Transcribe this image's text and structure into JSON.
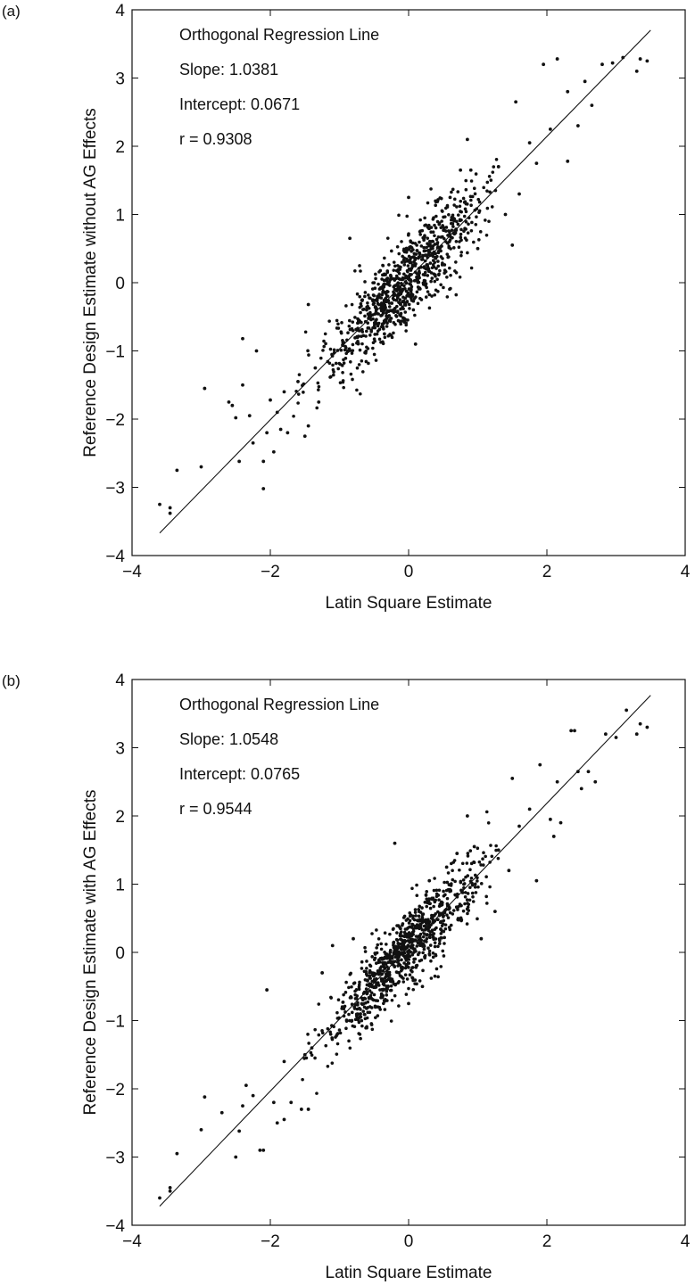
{
  "chart_data": [
    {
      "type": "scatter",
      "panel_label": "(a)",
      "xlabel": "Latin Square Estimate",
      "ylabel": "Reference Design Estimate without AG Effects",
      "xlim": [
        -4,
        4
      ],
      "ylim": [
        -4,
        4
      ],
      "xticks": [
        "−4",
        "−2",
        "0",
        "2",
        "4"
      ],
      "yticks": [
        "4",
        "3",
        "2",
        "1",
        "0",
        "−1",
        "−2",
        "−3",
        "−4"
      ],
      "grid": false,
      "annotations": [
        "Orthogonal Regression Line",
        "Slope: 1.0381",
        "Intercept: 0.0671",
        "r = 0.9308"
      ],
      "regression": {
        "slope": 1.0381,
        "intercept": 0.0671,
        "x_range": [
          -3.6,
          3.5
        ]
      },
      "correlation": 0.9308,
      "points": [
        [
          -3.6,
          -3.25
        ],
        [
          -3.45,
          -3.3
        ],
        [
          -3.45,
          -3.38
        ],
        [
          -3.35,
          -2.75
        ],
        [
          -3.0,
          -2.7
        ],
        [
          -2.95,
          -1.55
        ],
        [
          -2.6,
          -1.75
        ],
        [
          -2.55,
          -1.8
        ],
        [
          -2.5,
          -1.98
        ],
        [
          -2.45,
          -2.62
        ],
        [
          -2.4,
          -0.82
        ],
        [
          -2.4,
          -1.5
        ],
        [
          -2.3,
          -1.95
        ],
        [
          -2.25,
          -2.35
        ],
        [
          -2.2,
          -1.0
        ],
        [
          -2.1,
          -3.02
        ],
        [
          -2.1,
          -2.62
        ],
        [
          -2.05,
          -2.2
        ],
        [
          -2.0,
          -1.72
        ],
        [
          -1.95,
          -2.48
        ],
        [
          -1.9,
          -1.9
        ],
        [
          -1.85,
          -2.15
        ],
        [
          -1.8,
          -1.6
        ],
        [
          -1.75,
          -2.2
        ],
        [
          -1.6,
          -1.45
        ],
        [
          -1.5,
          -2.25
        ],
        [
          -1.45,
          -0.32
        ],
        [
          -1.45,
          -2.1
        ],
        [
          -1.35,
          -1.25
        ],
        [
          -1.3,
          -1.75
        ],
        [
          3.45,
          3.25
        ],
        [
          3.35,
          3.28
        ],
        [
          3.3,
          3.1
        ],
        [
          3.1,
          3.3
        ],
        [
          2.95,
          3.22
        ],
        [
          2.8,
          3.2
        ],
        [
          2.65,
          2.6
        ],
        [
          2.55,
          2.95
        ],
        [
          2.45,
          2.3
        ],
        [
          2.3,
          1.78
        ],
        [
          2.3,
          2.8
        ],
        [
          2.15,
          3.28
        ],
        [
          2.05,
          2.25
        ],
        [
          1.95,
          3.2
        ],
        [
          1.85,
          1.75
        ],
        [
          1.75,
          2.05
        ],
        [
          1.6,
          1.3
        ],
        [
          1.55,
          2.65
        ],
        [
          1.5,
          0.55
        ],
        [
          1.4,
          1.0
        ],
        [
          1.3,
          1.7
        ],
        [
          0.85,
          2.1
        ],
        [
          0.9,
          1.65
        ],
        [
          0.75,
          1.65
        ],
        [
          1.0,
          0.5
        ],
        [
          0.6,
          1.25
        ],
        [
          -0.85,
          0.65
        ],
        [
          0.0,
          1.25
        ],
        [
          0.1,
          -0.9
        ],
        [
          -0.35,
          -0.75
        ]
      ]
    },
    {
      "type": "scatter",
      "panel_label": "(b)",
      "xlabel": "Latin Square Estimate",
      "ylabel": "Reference Design Estimate with AG Effects",
      "xlim": [
        -4,
        4
      ],
      "ylim": [
        -4,
        4
      ],
      "xticks": [
        "−4",
        "−2",
        "0",
        "2",
        "4"
      ],
      "yticks": [
        "4",
        "3",
        "2",
        "1",
        "0",
        "−1",
        "−2",
        "−3",
        "−4"
      ],
      "grid": false,
      "annotations": [
        "Orthogonal Regression Line",
        "Slope: 1.0548",
        "Intercept: 0.0765",
        "r = 0.9544"
      ],
      "regression": {
        "slope": 1.0548,
        "intercept": 0.0765,
        "x_range": [
          -3.6,
          3.5
        ]
      },
      "correlation": 0.9544,
      "points": [
        [
          -3.6,
          -3.6
        ],
        [
          -3.45,
          -3.45
        ],
        [
          -3.45,
          -3.5
        ],
        [
          -3.35,
          -2.95
        ],
        [
          -3.0,
          -2.6
        ],
        [
          -2.95,
          -2.12
        ],
        [
          -2.7,
          -2.35
        ],
        [
          -2.5,
          -3.0
        ],
        [
          -2.45,
          -2.62
        ],
        [
          -2.4,
          -2.25
        ],
        [
          -2.35,
          -1.95
        ],
        [
          -2.25,
          -2.1
        ],
        [
          -2.15,
          -2.9
        ],
        [
          -2.1,
          -2.9
        ],
        [
          -2.05,
          -0.55
        ],
        [
          -1.95,
          -2.2
        ],
        [
          -1.9,
          -2.5
        ],
        [
          -1.8,
          -1.6
        ],
        [
          -1.8,
          -2.45
        ],
        [
          -1.7,
          -2.2
        ],
        [
          -1.55,
          -2.3
        ],
        [
          -1.5,
          -1.5
        ],
        [
          -1.45,
          -2.3
        ],
        [
          -1.4,
          -1.4
        ],
        [
          -0.2,
          1.6
        ],
        [
          0.0,
          -0.75
        ],
        [
          0.2,
          -0.5
        ],
        [
          3.45,
          3.3
        ],
        [
          3.35,
          3.35
        ],
        [
          3.3,
          3.2
        ],
        [
          3.15,
          3.55
        ],
        [
          3.0,
          3.15
        ],
        [
          2.85,
          3.2
        ],
        [
          2.7,
          2.5
        ],
        [
          2.6,
          2.65
        ],
        [
          2.5,
          2.4
        ],
        [
          2.45,
          2.65
        ],
        [
          2.4,
          3.25
        ],
        [
          2.35,
          3.25
        ],
        [
          2.2,
          1.9
        ],
        [
          2.15,
          2.5
        ],
        [
          2.1,
          1.7
        ],
        [
          2.05,
          1.95
        ],
        [
          1.9,
          2.75
        ],
        [
          1.85,
          1.05
        ],
        [
          1.75,
          2.1
        ],
        [
          1.6,
          1.85
        ],
        [
          1.5,
          2.55
        ],
        [
          1.45,
          1.2
        ],
        [
          1.3,
          1.5
        ],
        [
          1.25,
          0.6
        ],
        [
          1.05,
          0.2
        ],
        [
          0.95,
          1.55
        ],
        [
          0.85,
          2.0
        ],
        [
          0.7,
          1.45
        ],
        [
          -0.8,
          0.2
        ],
        [
          -1.25,
          -0.3
        ],
        [
          -1.1,
          0.1
        ],
        [
          0.3,
          1.05
        ],
        [
          0.55,
          1.25
        ]
      ]
    }
  ]
}
